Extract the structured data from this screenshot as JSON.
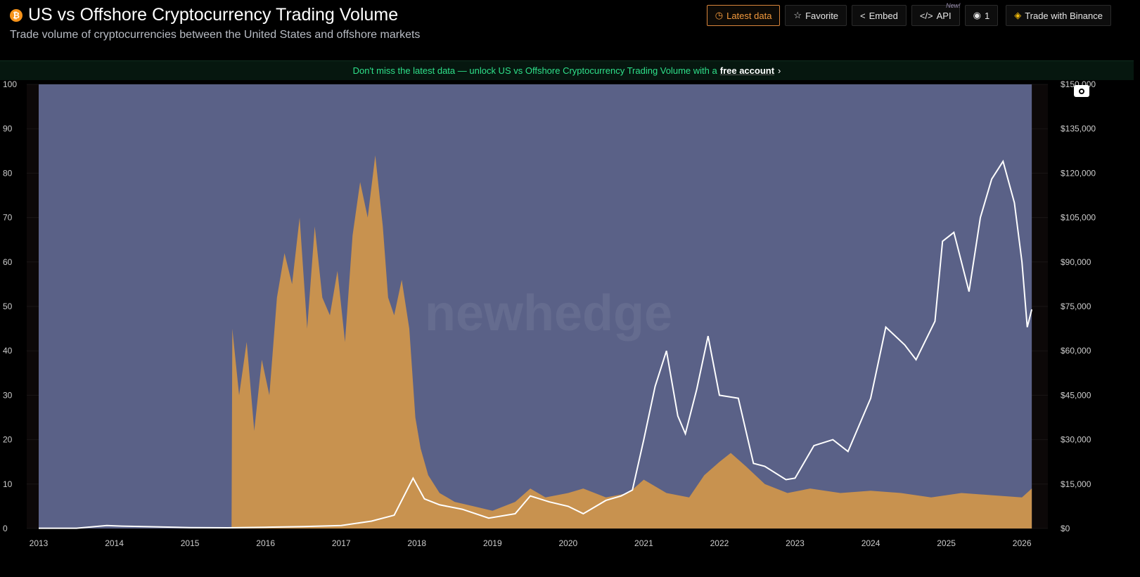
{
  "header": {
    "title": "US vs Offshore Cryptocurrency Trading Volume",
    "subtitle": "Trade volume of cryptocurrencies between the United States and offshore markets",
    "icon": "bitcoin-icon"
  },
  "toolbar": {
    "latest": "Latest data",
    "favorite": "Favorite",
    "embed": "Embed",
    "api": "API",
    "api_badge": "New!",
    "views": "1",
    "binance": "Trade with Binance"
  },
  "banner": {
    "text": "Don't miss the latest data — unlock US vs Offshore Cryptocurrency Trading Volume with a",
    "link": "free account"
  },
  "watermark": "newhedge",
  "colors": {
    "offshore": "#5a6187",
    "us": "#c8924f",
    "price": "#ffffff",
    "accent": "#f39a3d",
    "banner_text": "#2ee08a"
  },
  "chart_data": {
    "type": "area",
    "x_ticks": [
      "2013",
      "2014",
      "2015",
      "2016",
      "2017",
      "2018",
      "2019",
      "2020",
      "2021",
      "2022",
      "2023",
      "2024",
      "2025",
      "2026"
    ],
    "xlim": [
      2013.0,
      2026.13
    ],
    "y_left": {
      "ylim": [
        0,
        100
      ],
      "ticks": [
        "0",
        "10",
        "20",
        "30",
        "40",
        "50",
        "60",
        "70",
        "80",
        "90",
        "100"
      ]
    },
    "y_right": {
      "ylim": [
        0,
        150000
      ],
      "ticks": [
        "$0",
        "$15,000",
        "$30,000",
        "$45,000",
        "$60,000",
        "$75,000",
        "$90,000",
        "$105,000",
        "$120,000",
        "$135,000",
        "$150,000"
      ]
    },
    "grid": true,
    "series": [
      {
        "type": "area",
        "axis": "left",
        "values": [
          [
            2013.0,
            100
          ],
          [
            2026.13,
            100
          ]
        ]
      },
      {
        "type": "area",
        "axis": "left",
        "values": [
          [
            2015.55,
            0
          ],
          [
            2015.56,
            45
          ],
          [
            2015.65,
            30
          ],
          [
            2015.75,
            42
          ],
          [
            2015.85,
            22
          ],
          [
            2015.95,
            38
          ],
          [
            2016.05,
            30
          ],
          [
            2016.15,
            52
          ],
          [
            2016.25,
            62
          ],
          [
            2016.35,
            55
          ],
          [
            2016.45,
            70
          ],
          [
            2016.55,
            45
          ],
          [
            2016.65,
            68
          ],
          [
            2016.75,
            52
          ],
          [
            2016.85,
            48
          ],
          [
            2016.95,
            58
          ],
          [
            2017.05,
            42
          ],
          [
            2017.15,
            66
          ],
          [
            2017.25,
            78
          ],
          [
            2017.35,
            70
          ],
          [
            2017.45,
            84
          ],
          [
            2017.55,
            68
          ],
          [
            2017.62,
            52
          ],
          [
            2017.7,
            48
          ],
          [
            2017.8,
            56
          ],
          [
            2017.9,
            45
          ],
          [
            2017.98,
            25
          ],
          [
            2018.05,
            18
          ],
          [
            2018.15,
            12
          ],
          [
            2018.3,
            8
          ],
          [
            2018.5,
            6
          ],
          [
            2018.75,
            5
          ],
          [
            2019.0,
            4
          ],
          [
            2019.3,
            6
          ],
          [
            2019.5,
            9
          ],
          [
            2019.7,
            7
          ],
          [
            2020.0,
            8
          ],
          [
            2020.2,
            9
          ],
          [
            2020.5,
            7
          ],
          [
            2020.8,
            8
          ],
          [
            2021.0,
            11
          ],
          [
            2021.3,
            8
          ],
          [
            2021.6,
            7
          ],
          [
            2021.8,
            12
          ],
          [
            2022.0,
            15
          ],
          [
            2022.15,
            17
          ],
          [
            2022.35,
            14
          ],
          [
            2022.6,
            10
          ],
          [
            2022.9,
            8
          ],
          [
            2023.2,
            9
          ],
          [
            2023.6,
            8
          ],
          [
            2024.0,
            8.5
          ],
          [
            2024.4,
            8
          ],
          [
            2024.8,
            7
          ],
          [
            2025.2,
            8
          ],
          [
            2025.6,
            7.5
          ],
          [
            2026.0,
            7
          ],
          [
            2026.13,
            9
          ]
        ]
      },
      {
        "type": "line",
        "axis": "right",
        "values": [
          [
            2013.0,
            100
          ],
          [
            2013.5,
            100
          ],
          [
            2013.9,
            1000
          ],
          [
            2014.1,
            800
          ],
          [
            2014.5,
            600
          ],
          [
            2015.0,
            300
          ],
          [
            2015.5,
            250
          ],
          [
            2016.0,
            430
          ],
          [
            2016.5,
            650
          ],
          [
            2017.0,
            1000
          ],
          [
            2017.4,
            2500
          ],
          [
            2017.7,
            4500
          ],
          [
            2017.95,
            17000
          ],
          [
            2018.1,
            10000
          ],
          [
            2018.3,
            8000
          ],
          [
            2018.6,
            6500
          ],
          [
            2018.95,
            3500
          ],
          [
            2019.3,
            5000
          ],
          [
            2019.5,
            11000
          ],
          [
            2019.75,
            9000
          ],
          [
            2020.0,
            7500
          ],
          [
            2020.2,
            5000
          ],
          [
            2020.5,
            9500
          ],
          [
            2020.7,
            11000
          ],
          [
            2020.85,
            13000
          ],
          [
            2021.0,
            30000
          ],
          [
            2021.15,
            48000
          ],
          [
            2021.3,
            60000
          ],
          [
            2021.45,
            38000
          ],
          [
            2021.55,
            32000
          ],
          [
            2021.7,
            47000
          ],
          [
            2021.85,
            65000
          ],
          [
            2022.0,
            45000
          ],
          [
            2022.25,
            44000
          ],
          [
            2022.45,
            22000
          ],
          [
            2022.6,
            21000
          ],
          [
            2022.88,
            16500
          ],
          [
            2023.0,
            17000
          ],
          [
            2023.25,
            28000
          ],
          [
            2023.5,
            30000
          ],
          [
            2023.7,
            26000
          ],
          [
            2023.85,
            35000
          ],
          [
            2024.0,
            44000
          ],
          [
            2024.2,
            68000
          ],
          [
            2024.45,
            62000
          ],
          [
            2024.6,
            57000
          ],
          [
            2024.85,
            70000
          ],
          [
            2024.95,
            97000
          ],
          [
            2025.1,
            100000
          ],
          [
            2025.3,
            80000
          ],
          [
            2025.45,
            105000
          ],
          [
            2025.6,
            118000
          ],
          [
            2025.75,
            124000
          ],
          [
            2025.9,
            110000
          ],
          [
            2026.0,
            90000
          ],
          [
            2026.07,
            68000
          ],
          [
            2026.13,
            74000
          ]
        ]
      }
    ]
  }
}
